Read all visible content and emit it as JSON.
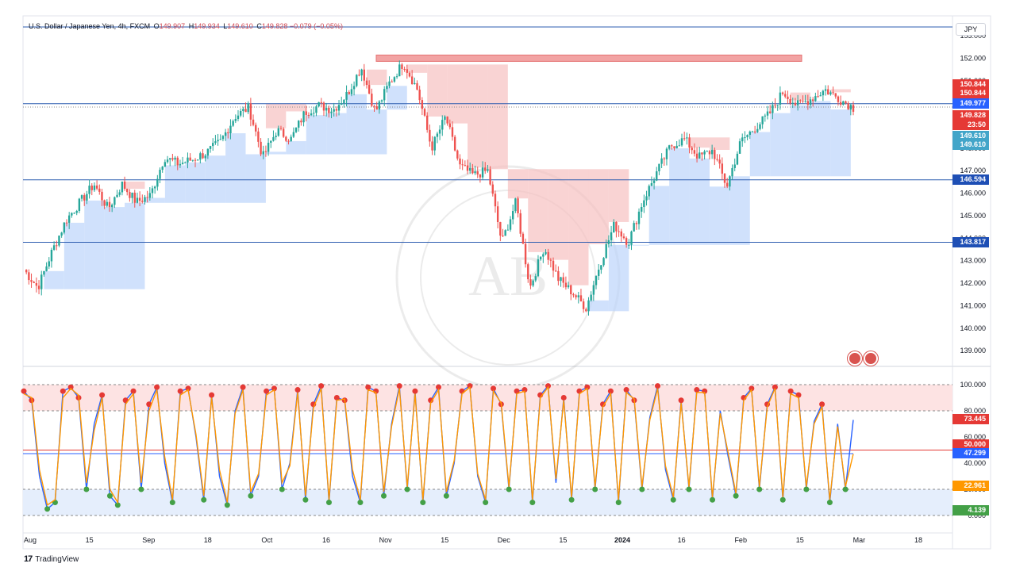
{
  "header": {
    "symbol": "U.S. Dollar / Japanese Yen, 4h, FXCM",
    "open_label": "O",
    "open": "149.907",
    "high_label": "H",
    "high": "149.934",
    "low_label": "L",
    "low": "149.610",
    "close_label": "C",
    "close": "149.828",
    "change": "−0.079 (−0.05%)"
  },
  "currency": "JPY",
  "footer": {
    "brand": "TradingView",
    "logo_glyph": "17"
  },
  "colors": {
    "bull": "#26a69a",
    "bear": "#ef5350",
    "stoch_k": "#2962ff",
    "stoch_d": "#ff9800",
    "resistance_zone": "#f7c1c1",
    "support_zone": "#bcd4fb",
    "level_line": "#2d5db0",
    "overbought_zone": "#fde3e3",
    "oversold_zone": "#e5eefc"
  },
  "chart_data": [
    {
      "type": "candlestick",
      "title": "",
      "ylim": [
        138.3,
        153.6
      ],
      "y_ticks": [
        "139.000",
        "140.000",
        "141.000",
        "142.000",
        "143.000",
        "144.000",
        "145.000",
        "146.000",
        "147.000",
        "148.000",
        "149.000",
        "150.000",
        "151.000",
        "152.000",
        "153.000"
      ],
      "x_ticks": [
        "Aug",
        "15",
        "Sep",
        "18",
        "Oct",
        "16",
        "Nov",
        "15",
        "Dec",
        "15",
        "2024",
        "16",
        "Feb",
        "15",
        "Mar",
        "18"
      ],
      "close_path": [
        {
          "date": "Aug 1",
          "close": 142.6
        },
        {
          "date": "Aug 4",
          "close": 141.8
        },
        {
          "date": "Aug 8",
          "close": 143.4
        },
        {
          "date": "Aug 11",
          "close": 144.8
        },
        {
          "date": "Aug 14",
          "close": 145.6
        },
        {
          "date": "Aug 17",
          "close": 146.4
        },
        {
          "date": "Aug 22",
          "close": 145.3
        },
        {
          "date": "Aug 25",
          "close": 146.4
        },
        {
          "date": "Aug 29",
          "close": 145.6
        },
        {
          "date": "Sep 1",
          "close": 145.9
        },
        {
          "date": "Sep 5",
          "close": 147.6
        },
        {
          "date": "Sep 8",
          "close": 147.3
        },
        {
          "date": "Sep 13",
          "close": 147.5
        },
        {
          "date": "Sep 18",
          "close": 147.8
        },
        {
          "date": "Sep 22",
          "close": 148.3
        },
        {
          "date": "Sep 28",
          "close": 149.4
        },
        {
          "date": "Oct 3",
          "close": 149.8
        },
        {
          "date": "Oct 3b",
          "close": 147.6
        },
        {
          "date": "Oct 6",
          "close": 148.8
        },
        {
          "date": "Oct 10",
          "close": 148.4
        },
        {
          "date": "Oct 13",
          "close": 149.6
        },
        {
          "date": "Oct 18",
          "close": 149.9
        },
        {
          "date": "Oct 23",
          "close": 149.7
        },
        {
          "date": "Oct 26",
          "close": 150.4
        },
        {
          "date": "Oct 31",
          "close": 151.6
        },
        {
          "date": "Nov 3",
          "close": 149.6
        },
        {
          "date": "Nov 7",
          "close": 150.9
        },
        {
          "date": "Nov 13",
          "close": 151.8
        },
        {
          "date": "Nov 16",
          "close": 150.6
        },
        {
          "date": "Nov 21",
          "close": 148.0
        },
        {
          "date": "Nov 24",
          "close": 149.4
        },
        {
          "date": "Nov 29",
          "close": 147.2
        },
        {
          "date": "Dec 1",
          "close": 146.8
        },
        {
          "date": "Dec 5",
          "close": 147.0
        },
        {
          "date": "Dec 7",
          "close": 143.8
        },
        {
          "date": "Dec 10",
          "close": 145.6
        },
        {
          "date": "Dec 14",
          "close": 141.8
        },
        {
          "date": "Dec 18",
          "close": 143.6
        },
        {
          "date": "Dec 21",
          "close": 142.2
        },
        {
          "date": "Dec 25",
          "close": 141.6
        },
        {
          "date": "Dec 28",
          "close": 140.9
        },
        {
          "date": "Jan 2",
          "close": 142.9
        },
        {
          "date": "Jan 5",
          "close": 144.6
        },
        {
          "date": "Jan 8",
          "close": 143.8
        },
        {
          "date": "Jan 11",
          "close": 145.6
        },
        {
          "date": "Jan 15",
          "close": 146.9
        },
        {
          "date": "Jan 19",
          "close": 148.1
        },
        {
          "date": "Jan 22",
          "close": 148.4
        },
        {
          "date": "Jan 25",
          "close": 147.6
        },
        {
          "date": "Jan 29",
          "close": 147.9
        },
        {
          "date": "Feb 1",
          "close": 146.3
        },
        {
          "date": "Feb 4",
          "close": 148.3
        },
        {
          "date": "Feb 7",
          "close": 148.9
        },
        {
          "date": "Feb 11",
          "close": 149.5
        },
        {
          "date": "Feb 14",
          "close": 150.5
        },
        {
          "date": "Feb 17",
          "close": 149.9
        },
        {
          "date": "Feb 21",
          "close": 150.2
        },
        {
          "date": "Feb 24",
          "close": 150.6
        },
        {
          "date": "Feb 26",
          "close": 150.2
        },
        {
          "date": "Feb 28",
          "close": 149.8
        }
      ],
      "price_levels": [
        {
          "name": "152.000 resistance",
          "value": 152.0
        },
        {
          "name": "149.977 level",
          "value": 149.977
        },
        {
          "name": "146.594 level",
          "value": 146.594
        },
        {
          "name": "143.817 level",
          "value": 143.817
        }
      ],
      "price_tags": [
        {
          "label": "150.844",
          "value": 150.844,
          "color": "#e53935"
        },
        {
          "label": "150.844",
          "value": 150.45,
          "color": "#e53935"
        },
        {
          "label": "149.977",
          "value": 149.977,
          "color": "#2962ff"
        },
        {
          "label": "149.828",
          "value": 149.45,
          "color": "#e53935"
        },
        {
          "label": "23:50",
          "value": 149.05,
          "color": "#e53935"
        },
        {
          "label": "149.610",
          "value": 148.55,
          "color": "#42a5c9"
        },
        {
          "label": "149.610",
          "value": 148.15,
          "color": "#42a5c9"
        },
        {
          "label": "146.594",
          "value": 146.594,
          "color": "#1e4fb5"
        },
        {
          "label": "143.817",
          "value": 143.817,
          "color": "#1e4fb5"
        }
      ]
    },
    {
      "type": "line",
      "title": "",
      "ylim": [
        -3,
        103
      ],
      "y_ticks": [
        "0.000",
        "20.000",
        "40.000",
        "60.000",
        "80.000",
        "100.000"
      ],
      "levels": [
        0,
        20,
        50,
        80,
        100
      ],
      "series": [
        {
          "values": [
            95,
            88,
            30,
            5,
            10,
            95,
            98,
            90,
            20,
            70,
            92,
            15,
            8,
            88,
            95,
            20,
            85,
            98,
            40,
            10,
            95,
            97,
            60,
            12,
            92,
            30,
            8,
            80,
            98,
            15,
            30,
            95,
            97,
            20,
            40,
            96,
            12,
            85,
            99,
            10,
            90,
            88,
            30,
            10,
            98,
            95,
            15,
            70,
            99,
            20,
            95,
            10,
            88,
            98,
            15,
            40,
            95,
            99,
            30,
            10,
            97,
            85,
            20,
            95,
            96,
            10,
            92,
            99,
            25,
            90,
            12,
            95,
            98,
            20,
            85,
            95,
            10,
            96,
            88,
            20,
            75,
            99,
            35,
            12,
            88,
            20,
            96,
            95,
            12,
            80,
            45,
            15,
            90,
            97,
            20,
            85,
            98,
            12,
            95,
            92,
            20,
            72,
            85,
            10,
            70,
            20,
            73
          ]
        },
        {
          "values": [
            93,
            90,
            35,
            8,
            12,
            90,
            97,
            92,
            25,
            65,
            90,
            20,
            10,
            85,
            93,
            25,
            80,
            96,
            45,
            12,
            92,
            96,
            62,
            15,
            90,
            35,
            10,
            78,
            96,
            18,
            32,
            92,
            96,
            25,
            38,
            94,
            15,
            82,
            97,
            12,
            88,
            89,
            35,
            12,
            96,
            94,
            18,
            68,
            97,
            22,
            93,
            12,
            86,
            96,
            18,
            42,
            93,
            98,
            32,
            12,
            95,
            86,
            22,
            93,
            95,
            12,
            90,
            98,
            28,
            88,
            14,
            93,
            97,
            22,
            83,
            93,
            12,
            94,
            89,
            22,
            73,
            97,
            38,
            14,
            86,
            22,
            94,
            94,
            14,
            78,
            48,
            17,
            88,
            96,
            22,
            83,
            97,
            14,
            93,
            90,
            22,
            70,
            83,
            12,
            68,
            22,
            47
          ]
        }
      ],
      "value_tags": [
        {
          "label": "73.445",
          "value": 73.445,
          "color": "#e53935"
        },
        {
          "label": "50.000",
          "value": 54.5,
          "color": "#e53935"
        },
        {
          "label": "47.299",
          "value": 47.299,
          "color": "#2962ff"
        },
        {
          "label": "22.961",
          "value": 22.961,
          "color": "#ff9800"
        },
        {
          "label": "4.139",
          "value": 4.139,
          "color": "#43a047"
        }
      ]
    }
  ]
}
